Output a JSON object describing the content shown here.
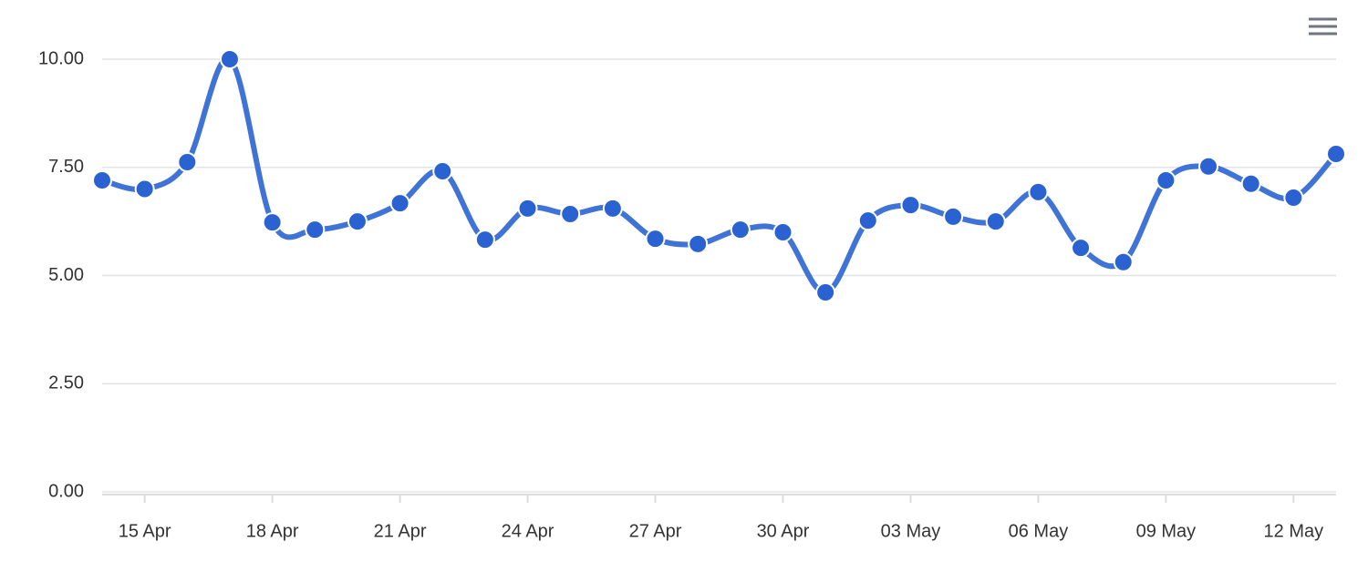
{
  "chart_data": {
    "type": "line",
    "x": [
      "14 Apr",
      "15 Apr",
      "16 Apr",
      "17 Apr",
      "18 Apr",
      "19 Apr",
      "20 Apr",
      "21 Apr",
      "22 Apr",
      "23 Apr",
      "24 Apr",
      "25 Apr",
      "26 Apr",
      "27 Apr",
      "28 Apr",
      "29 Apr",
      "30 Apr",
      "01 May",
      "02 May",
      "03 May",
      "04 May",
      "05 May",
      "06 May",
      "07 May",
      "08 May",
      "09 May",
      "10 May",
      "11 May",
      "12 May",
      "13 May"
    ],
    "values": [
      7.2,
      7.0,
      7.62,
      10.0,
      6.23,
      6.06,
      6.25,
      6.67,
      7.41,
      5.83,
      6.55,
      6.42,
      6.55,
      5.85,
      5.73,
      6.06,
      6.0,
      4.61,
      6.27,
      6.63,
      6.36,
      6.25,
      6.93,
      5.64,
      5.31,
      7.2,
      7.52,
      7.12,
      6.8,
      7.81
    ],
    "color": "#3f74d6",
    "ylim": [
      0,
      10
    ],
    "yticks": [
      {
        "value": 0,
        "label": "0.00"
      },
      {
        "value": 2.5,
        "label": "2.50"
      },
      {
        "value": 5,
        "label": "5.00"
      },
      {
        "value": 7.5,
        "label": "7.50"
      },
      {
        "value": 10,
        "label": "10.00"
      }
    ],
    "xticks": [
      "15 Apr",
      "18 Apr",
      "21 Apr",
      "24 Apr",
      "27 Apr",
      "30 Apr",
      "03 May",
      "06 May",
      "09 May",
      "12 May"
    ],
    "grid": true
  }
}
